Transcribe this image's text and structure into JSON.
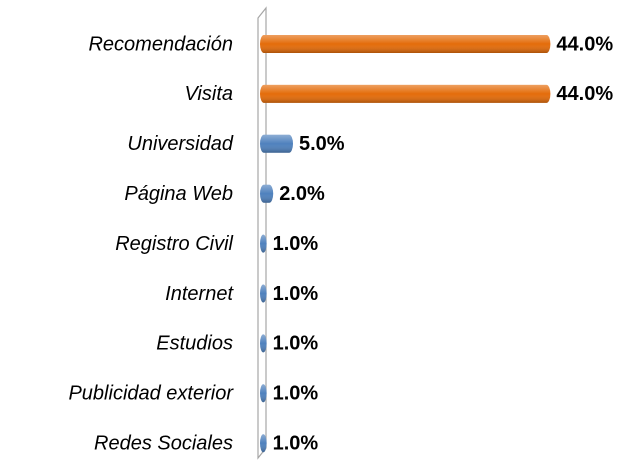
{
  "chart_data": {
    "type": "bar",
    "orientation": "horizontal",
    "categories": [
      "Recomendación",
      "Visita",
      "Universidad",
      "Página Web",
      "Registro Civil",
      "Internet",
      "Estudios",
      "Publicidad exterior",
      "Redes Sociales"
    ],
    "values": [
      44,
      44,
      5,
      2,
      1,
      1,
      1,
      1,
      1
    ],
    "value_labels": [
      "44.0%",
      "44.0%",
      "5.0%",
      "2.0%",
      "1.0%",
      "1.0%",
      "1.0%",
      "1.0%",
      "1.0%"
    ],
    "colors": [
      "#e46c0a",
      "#e46c0a",
      "#4f81bd",
      "#4f81bd",
      "#4f81bd",
      "#4f81bd",
      "#4f81bd",
      "#4f81bd",
      "#4f81bd"
    ]
  }
}
